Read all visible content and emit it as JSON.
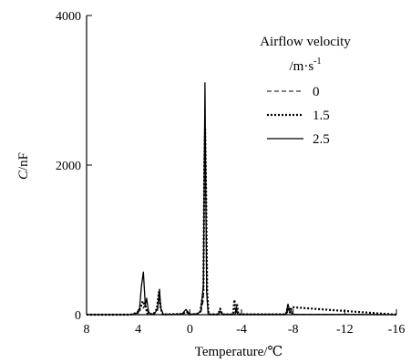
{
  "chart_data": {
    "type": "line",
    "xlabel": "Temperature/℃",
    "ylabel_italic": "C",
    "ylabel_rest": "/nF",
    "xlim": [
      8,
      -16
    ],
    "ylim": [
      0,
      4000
    ],
    "x_ticks": [
      8,
      4,
      0,
      -4,
      -8,
      -12,
      -16
    ],
    "y_ticks": [
      0,
      2000,
      4000
    ],
    "legend": {
      "title_line1": "Airflow velocity",
      "title_line2_main": "/m·s",
      "title_line2_sup": "-1",
      "placement": "top-right"
    },
    "series": [
      {
        "name": "0",
        "style": "dashed",
        "x": [
          8,
          6.5,
          4.6,
          4.3,
          4.1,
          3.85,
          3.65,
          3.5,
          3.35,
          3.2,
          3.05,
          2.75,
          2.5,
          2.35,
          2.2,
          2.05,
          1.7,
          1.2,
          0.6,
          0.3,
          0.0,
          -0.6,
          -0.85,
          -1.05,
          -1.12,
          -1.18,
          -1.25,
          -1.32,
          -1.42,
          -2.2,
          -2.35,
          -2.5,
          -3.5,
          -3.6,
          -3.7,
          -7.5,
          -7.7,
          -8.0,
          -16
        ],
        "y": [
          0,
          0,
          0,
          10,
          15,
          60,
          80,
          120,
          80,
          20,
          8,
          10,
          60,
          250,
          60,
          5,
          5,
          5,
          10,
          30,
          5,
          10,
          30,
          200,
          1800,
          2400,
          1500,
          300,
          5,
          5,
          40,
          5,
          5,
          110,
          5,
          5,
          100,
          5,
          0
        ]
      },
      {
        "name": "1.5",
        "style": "dotted",
        "x": [
          8,
          6.5,
          4.6,
          4.3,
          4.1,
          3.85,
          3.65,
          3.45,
          3.3,
          3.15,
          2.8,
          2.55,
          2.4,
          2.25,
          2.1,
          1.7,
          0.6,
          0.25,
          0.0,
          -0.55,
          -0.8,
          -1.05,
          -1.12,
          -1.18,
          -1.26,
          -1.34,
          -1.45,
          -2.2,
          -2.35,
          -2.5,
          -3.35,
          -3.45,
          -3.55,
          -3.65,
          -3.75,
          -7.45,
          -7.6,
          -7.75,
          -7.9,
          -16
        ],
        "y": [
          0,
          0,
          0,
          15,
          20,
          80,
          180,
          120,
          20,
          5,
          10,
          80,
          300,
          80,
          5,
          5,
          10,
          40,
          5,
          10,
          40,
          300,
          2000,
          2500,
          1600,
          300,
          5,
          5,
          80,
          5,
          5,
          200,
          30,
          150,
          5,
          5,
          120,
          30,
          100,
          0
        ]
      },
      {
        "name": "2.5",
        "style": "solid",
        "x": [
          8,
          6.5,
          4.6,
          4.3,
          4.1,
          3.9,
          3.75,
          3.6,
          3.45,
          3.35,
          3.2,
          3.05,
          2.75,
          2.5,
          2.35,
          2.25,
          2.05,
          1.8,
          1.2,
          0.6,
          0.3,
          0.0,
          -0.6,
          -0.85,
          -1.05,
          -1.12,
          -1.17,
          -1.22,
          -1.3,
          -1.42,
          -2.2,
          -2.35,
          -2.5,
          -3.5,
          -3.6,
          -3.7,
          -7.45,
          -7.6,
          -7.75,
          -8.0,
          -16
        ],
        "y": [
          0,
          0,
          0,
          10,
          20,
          80,
          380,
          570,
          120,
          220,
          40,
          8,
          10,
          80,
          340,
          80,
          5,
          5,
          5,
          10,
          70,
          5,
          10,
          50,
          400,
          2000,
          3100,
          2000,
          300,
          5,
          5,
          50,
          5,
          5,
          90,
          5,
          5,
          140,
          40,
          5,
          0
        ]
      }
    ]
  }
}
